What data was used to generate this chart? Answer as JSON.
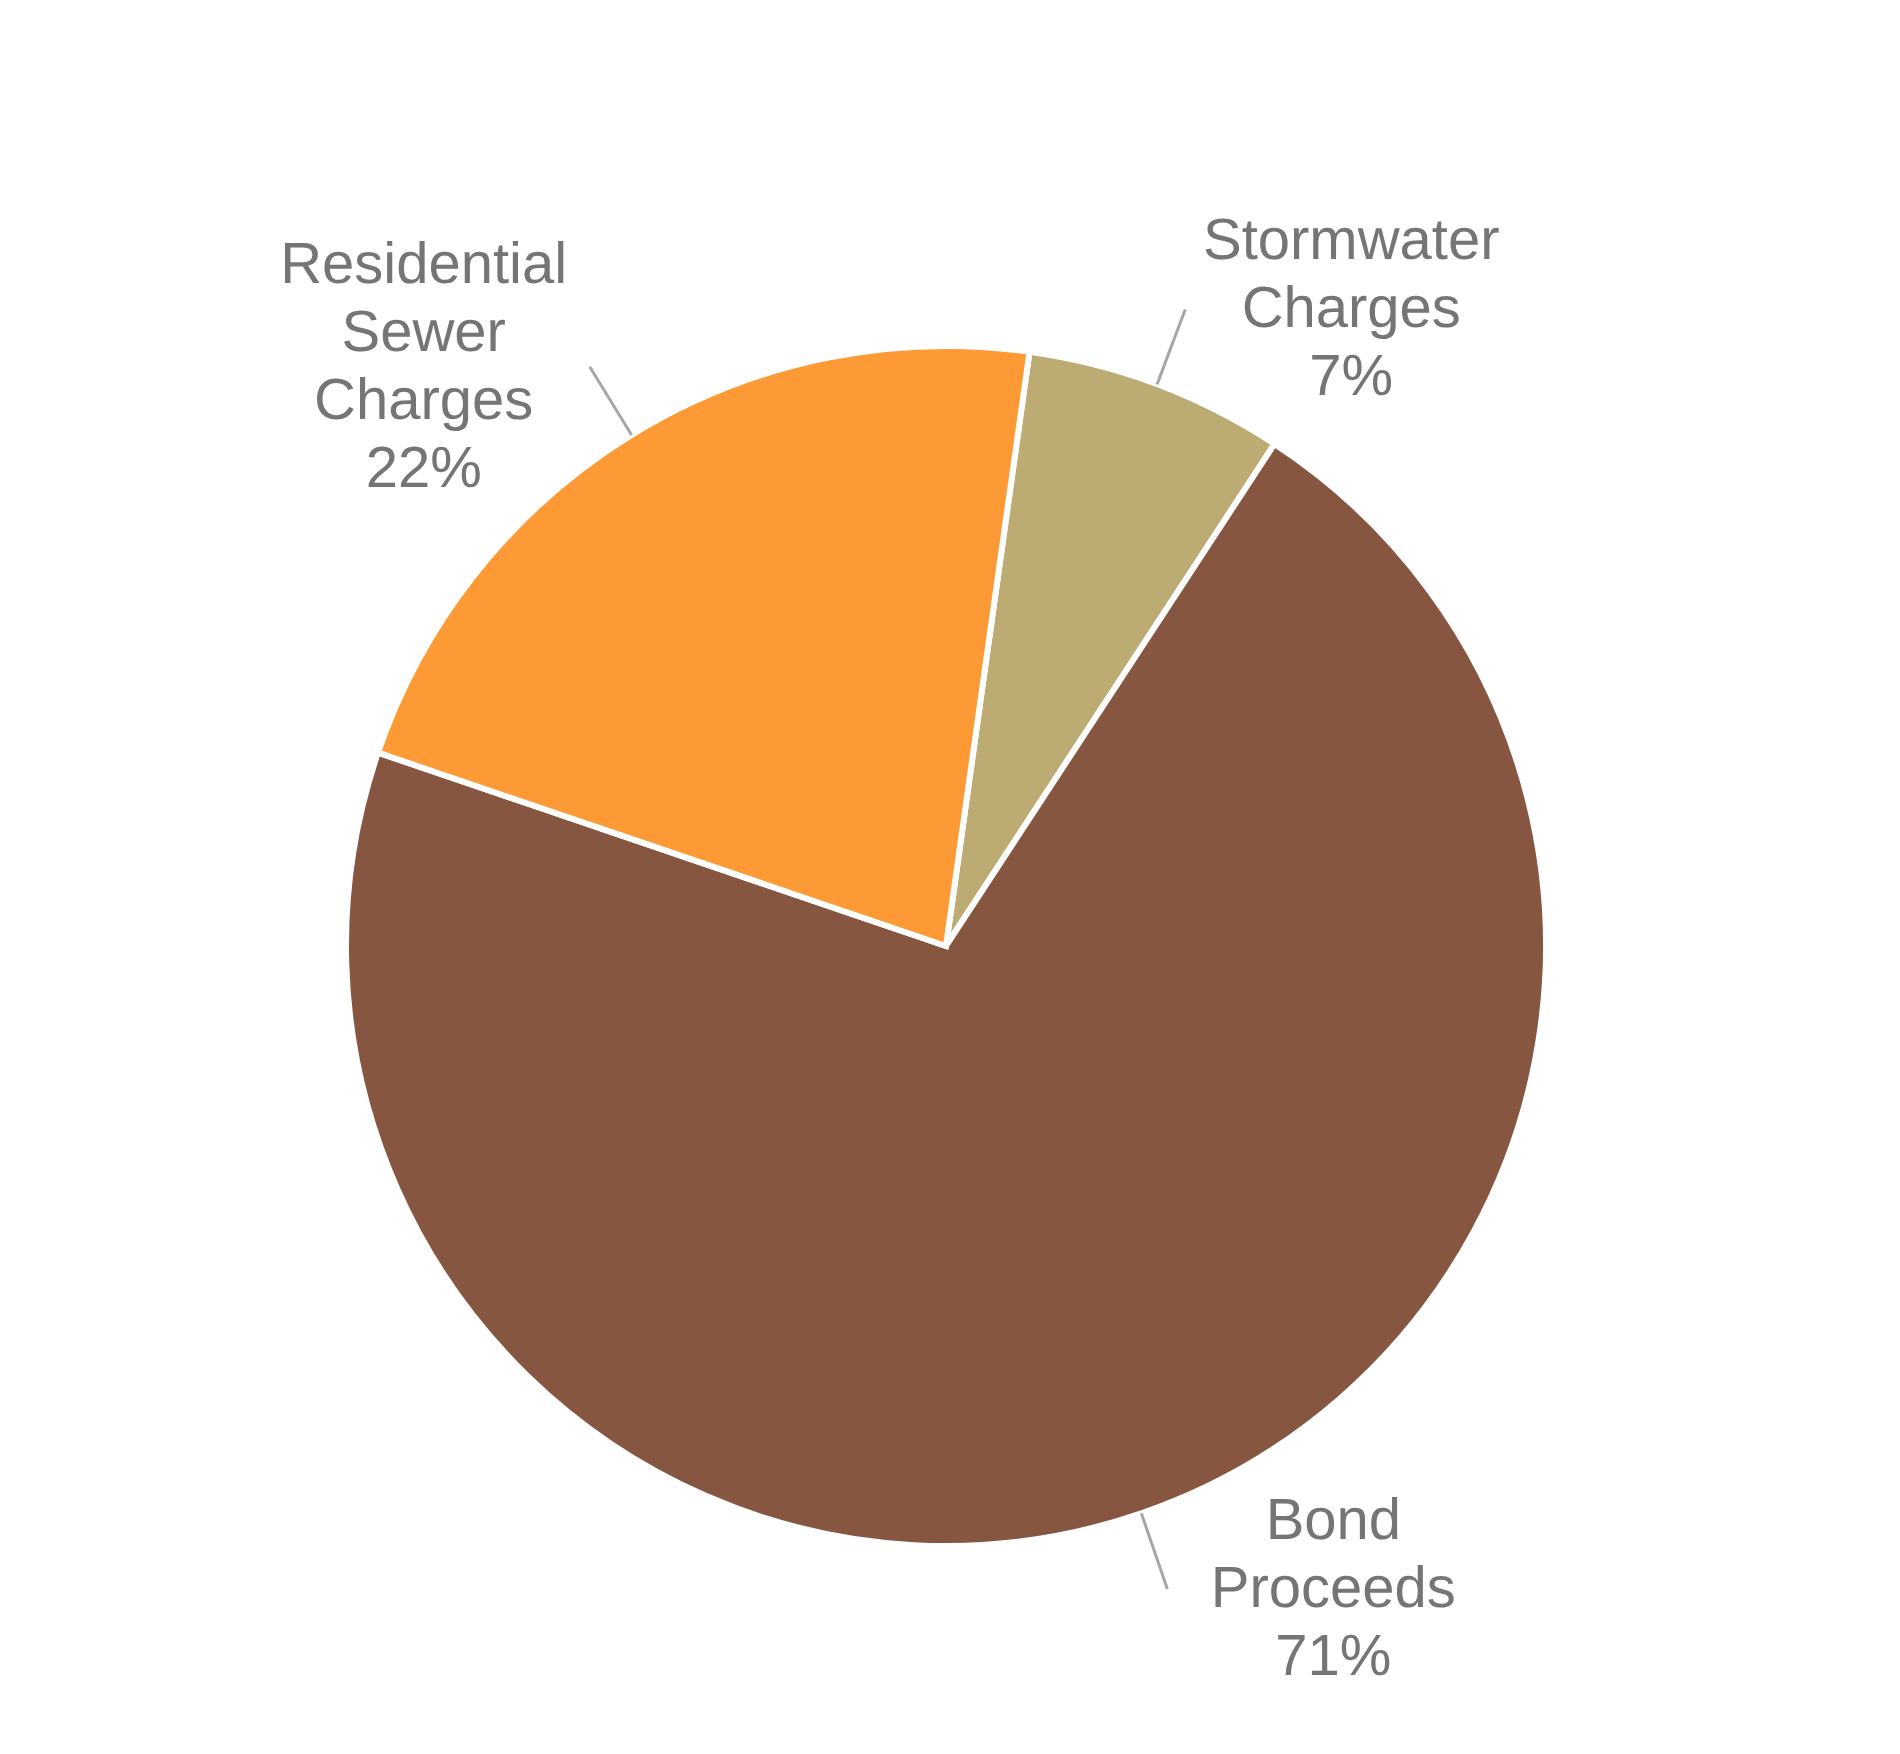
{
  "chart_data": {
    "type": "pie",
    "categories": [
      "Stormwater Charges",
      "Bond Proceeds",
      "Residential Sewer Charges"
    ],
    "values": [
      7,
      71,
      22
    ],
    "value_labels": [
      "7%",
      "71%",
      "22%"
    ],
    "colors": [
      "#bcab72",
      "#875640",
      "#fd9a35"
    ]
  }
}
